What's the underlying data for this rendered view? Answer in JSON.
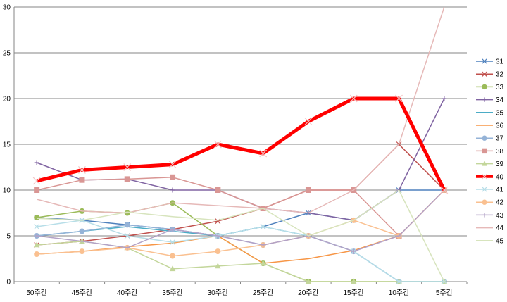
{
  "chart_data": {
    "type": "line",
    "title": "",
    "xlabel": "",
    "ylabel": "",
    "ylim": [
      0,
      30
    ],
    "yticks": [
      0,
      5,
      10,
      15,
      20,
      25,
      30
    ],
    "grid": "horizontal",
    "legend_position": "right",
    "categories": [
      "50주간",
      "45주간",
      "40주간",
      "35주간",
      "30주간",
      "25주간",
      "20주간",
      "15주간",
      "10주간",
      "5주간"
    ],
    "series": [
      {
        "name": "31",
        "color": "#4f81bd",
        "marker": "x",
        "values": [
          7,
          6.7,
          6.2,
          5.7,
          5,
          6,
          7.5,
          6.7,
          10,
          10
        ]
      },
      {
        "name": "32",
        "color": "#c0504d",
        "marker": "x",
        "values": [
          4,
          4.4,
          5,
          5.7,
          6.6,
          8,
          10,
          10,
          15,
          10
        ]
      },
      {
        "name": "33",
        "color": "#9bbb59",
        "marker": "circle",
        "values": [
          7,
          7.7,
          7.5,
          8.6,
          5,
          2,
          0,
          0,
          0,
          0
        ]
      },
      {
        "name": "34",
        "color": "#8064a2",
        "marker": "plus",
        "values": [
          13,
          11.1,
          11.2,
          10,
          10,
          8,
          7.5,
          6.7,
          10,
          20
        ]
      },
      {
        "name": "35",
        "color": "#4bacc6",
        "marker": "none",
        "values": [
          5,
          5.5,
          6,
          5.5,
          5,
          6,
          5,
          3.3,
          0,
          0
        ]
      },
      {
        "name": "36",
        "color": "#f79646",
        "marker": "none",
        "values": [
          3,
          3.3,
          3.8,
          4.2,
          5,
          2,
          2.5,
          3.4,
          5,
          10
        ]
      },
      {
        "name": "37",
        "color": "#95b3d7",
        "marker": "circle",
        "values": [
          5,
          5.5,
          6.2,
          5.7,
          5,
          4,
          5,
          3.3,
          0,
          0
        ]
      },
      {
        "name": "38",
        "color": "#d99694",
        "marker": "square",
        "values": [
          10,
          11.1,
          11.2,
          11.4,
          10,
          8,
          10,
          10,
          5,
          10
        ]
      },
      {
        "name": "39",
        "color": "#c3d69b",
        "marker": "triangle",
        "values": [
          4,
          4.4,
          3.7,
          1.4,
          1.7,
          2,
          0,
          0,
          0,
          0
        ]
      },
      {
        "name": "40",
        "color": "#ff0000",
        "marker": "x",
        "values": [
          11,
          12.2,
          12.5,
          12.8,
          15,
          14,
          17.5,
          20,
          20,
          10
        ]
      },
      {
        "name": "41",
        "color": "#b7dee8",
        "marker": "x",
        "values": [
          6,
          6.7,
          5,
          4.3,
          5,
          6,
          5,
          3.3,
          0,
          0
        ]
      },
      {
        "name": "42",
        "color": "#fac090",
        "marker": "circle",
        "values": [
          3,
          3.3,
          3.7,
          2.8,
          3.3,
          4,
          5,
          6.7,
          5,
          10
        ]
      },
      {
        "name": "43",
        "color": "#b3a2c7",
        "marker": "plus",
        "values": [
          5,
          4.4,
          3.7,
          5.7,
          5,
          4,
          5,
          3.3,
          5,
          10
        ]
      },
      {
        "name": "44",
        "color": "#e6b9b8",
        "marker": "none",
        "values": [
          9,
          7.7,
          7.5,
          8.6,
          8.3,
          8,
          7.5,
          10,
          15,
          30
        ]
      },
      {
        "name": "45",
        "color": "#d7e4bd",
        "marker": "none",
        "values": [
          6.9,
          6.7,
          7.6,
          7.1,
          6.7,
          8,
          5,
          6.7,
          10,
          0
        ]
      }
    ]
  }
}
